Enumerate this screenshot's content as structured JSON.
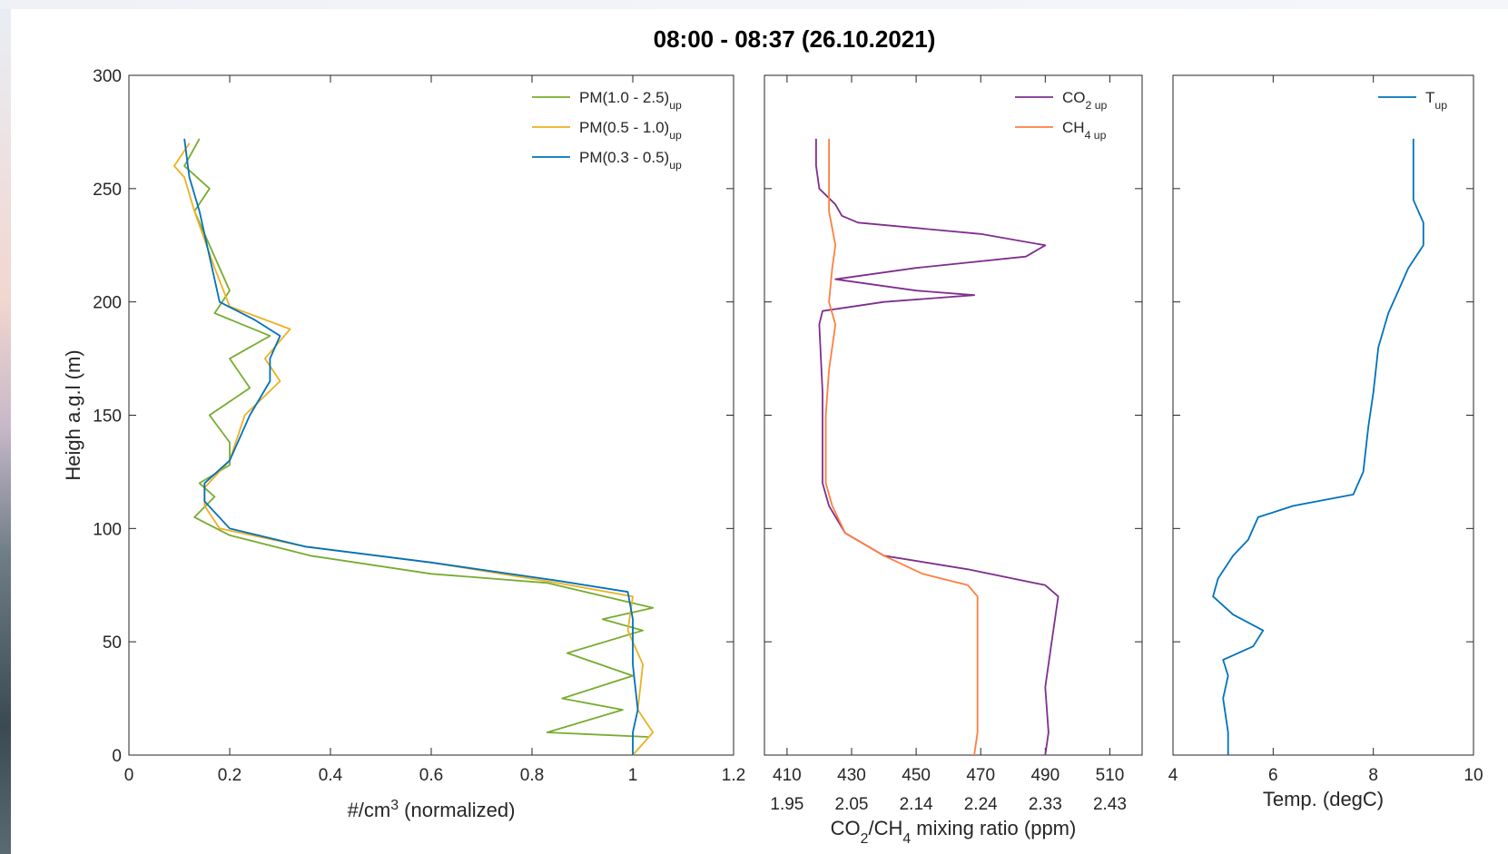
{
  "title": "08:00 - 08:37    (26.10.2021)",
  "colors": {
    "pm_1_2_5": "#77ac30",
    "pm_05_1": "#edb120",
    "pm_03_05": "#0072bd",
    "co2": "#7e2f8e",
    "ch4": "#ff7f3f",
    "temp": "#0072bd"
  },
  "chart_data": [
    {
      "type": "line",
      "ylabel": "Heigh a.g.l (m)",
      "xlabel_main": "#/cm",
      "xlabel_sup": "3",
      "xlabel_tail": " (normalized)",
      "xlim": [
        0,
        1.2
      ],
      "ylim": [
        0,
        300
      ],
      "xticks": [
        "0",
        "0.2",
        "0.4",
        "0.6",
        "0.8",
        "1",
        "1.2"
      ],
      "yticks": [
        "0",
        "50",
        "100",
        "150",
        "200",
        "250",
        "300"
      ],
      "legend_position": "top-right",
      "series": [
        {
          "name": "PM(1.0 - 2.5)",
          "sub": "up",
          "color_key": "pm_1_2_5",
          "points": [
            [
              1.03,
              8
            ],
            [
              0.83,
              10
            ],
            [
              0.98,
              20
            ],
            [
              0.86,
              25
            ],
            [
              1.0,
              35
            ],
            [
              0.87,
              45
            ],
            [
              1.02,
              55
            ],
            [
              0.94,
              60
            ],
            [
              1.04,
              65
            ],
            [
              0.83,
              76
            ],
            [
              0.6,
              80
            ],
            [
              0.36,
              88
            ],
            [
              0.2,
              97
            ],
            [
              0.13,
              105
            ],
            [
              0.17,
              114
            ],
            [
              0.14,
              120
            ],
            [
              0.2,
              128
            ],
            [
              0.2,
              138
            ],
            [
              0.16,
              150
            ],
            [
              0.24,
              162
            ],
            [
              0.2,
              175
            ],
            [
              0.28,
              185
            ],
            [
              0.17,
              195
            ],
            [
              0.2,
              205
            ],
            [
              0.16,
              225
            ],
            [
              0.13,
              240
            ],
            [
              0.16,
              250
            ],
            [
              0.11,
              260
            ],
            [
              0.14,
              272
            ]
          ]
        },
        {
          "name": "PM(0.5 - 1.0)",
          "sub": "up",
          "color_key": "pm_05_1",
          "points": [
            [
              1.0,
              0
            ],
            [
              1.04,
              10
            ],
            [
              1.01,
              20
            ],
            [
              1.02,
              40
            ],
            [
              0.99,
              55
            ],
            [
              1.0,
              70
            ],
            [
              0.85,
              76
            ],
            [
              0.6,
              85
            ],
            [
              0.35,
              92
            ],
            [
              0.18,
              100
            ],
            [
              0.15,
              110
            ],
            [
              0.15,
              118
            ],
            [
              0.2,
              130
            ],
            [
              0.23,
              150
            ],
            [
              0.3,
              165
            ],
            [
              0.27,
              175
            ],
            [
              0.32,
              188
            ],
            [
              0.2,
              198
            ],
            [
              0.17,
              215
            ],
            [
              0.13,
              240
            ],
            [
              0.11,
              255
            ],
            [
              0.09,
              260
            ],
            [
              0.12,
              270
            ]
          ]
        },
        {
          "name": "PM(0.3 - 0.5)",
          "sub": "up",
          "color_key": "pm_03_05",
          "points": [
            [
              1.0,
              0
            ],
            [
              1.0,
              10
            ],
            [
              1.01,
              20
            ],
            [
              1.0,
              40
            ],
            [
              1.0,
              60
            ],
            [
              0.99,
              72
            ],
            [
              0.85,
              77
            ],
            [
              0.6,
              85
            ],
            [
              0.35,
              92
            ],
            [
              0.2,
              100
            ],
            [
              0.15,
              112
            ],
            [
              0.15,
              120
            ],
            [
              0.2,
              130
            ],
            [
              0.24,
              150
            ],
            [
              0.28,
              165
            ],
            [
              0.28,
              175
            ],
            [
              0.3,
              185
            ],
            [
              0.25,
              192
            ],
            [
              0.18,
              200
            ],
            [
              0.16,
              220
            ],
            [
              0.14,
              240
            ],
            [
              0.12,
              255
            ],
            [
              0.11,
              272
            ]
          ]
        }
      ]
    },
    {
      "type": "line",
      "xlabel_parts": [
        "CO",
        "2",
        "/CH",
        "4",
        " mixing ratio (ppm)"
      ],
      "xlim": [
        403,
        520
      ],
      "ylim": [
        0,
        300
      ],
      "xticks_co2": [
        "410",
        "430",
        "450",
        "470",
        "490",
        "510"
      ],
      "xticks_ch4": [
        "1.95",
        "2.05",
        "2.14",
        "2.24",
        "2.33",
        "2.43"
      ],
      "legend_position": "top-right",
      "series": [
        {
          "name": "CO",
          "sub": "2 up",
          "color_key": "co2",
          "points": [
            [
              490,
              0
            ],
            [
              491,
              10
            ],
            [
              490,
              30
            ],
            [
              492,
              50
            ],
            [
              493,
              60
            ],
            [
              494,
              70
            ],
            [
              490,
              75
            ],
            [
              466,
              82
            ],
            [
              440,
              88
            ],
            [
              428,
              98
            ],
            [
              423,
              110
            ],
            [
              421,
              120
            ],
            [
              421,
              160
            ],
            [
              420,
              190
            ],
            [
              421,
              196
            ],
            [
              440,
              200
            ],
            [
              468,
              203
            ],
            [
              450,
              205
            ],
            [
              425,
              210
            ],
            [
              450,
              215
            ],
            [
              484,
              220
            ],
            [
              490,
              225
            ],
            [
              470,
              230
            ],
            [
              432,
              235
            ],
            [
              427,
              238
            ],
            [
              425,
              243
            ],
            [
              420,
              250
            ],
            [
              419,
              260
            ],
            [
              419,
              272
            ]
          ]
        },
        {
          "name": "CH",
          "sub": "4 up",
          "color_key": "ch4",
          "points": [
            [
              468,
              0
            ],
            [
              469,
              10
            ],
            [
              469,
              40
            ],
            [
              469,
              60
            ],
            [
              469,
              70
            ],
            [
              466,
              75
            ],
            [
              452,
              80
            ],
            [
              440,
              88
            ],
            [
              428,
              98
            ],
            [
              424,
              110
            ],
            [
              422,
              120
            ],
            [
              422,
              150
            ],
            [
              423,
              170
            ],
            [
              425,
              190
            ],
            [
              423,
              200
            ],
            [
              424,
              215
            ],
            [
              425,
              225
            ],
            [
              423,
              240
            ],
            [
              423,
              255
            ],
            [
              423,
              272
            ]
          ]
        }
      ]
    },
    {
      "type": "line",
      "xlabel": "Temp. (degC)",
      "xlim": [
        4,
        10
      ],
      "ylim": [
        0,
        300
      ],
      "xticks": [
        "4",
        "6",
        "8",
        "10"
      ],
      "legend_position": "top-right",
      "series": [
        {
          "name": "T",
          "sub": "up",
          "color_key": "temp",
          "points": [
            [
              5.1,
              0
            ],
            [
              5.1,
              10
            ],
            [
              5.0,
              25
            ],
            [
              5.1,
              35
            ],
            [
              5.0,
              42
            ],
            [
              5.6,
              48
            ],
            [
              5.8,
              55
            ],
            [
              5.2,
              62
            ],
            [
              4.8,
              70
            ],
            [
              4.9,
              78
            ],
            [
              5.2,
              88
            ],
            [
              5.5,
              95
            ],
            [
              5.7,
              105
            ],
            [
              6.4,
              110
            ],
            [
              7.6,
              115
            ],
            [
              7.8,
              125
            ],
            [
              7.9,
              145
            ],
            [
              8.0,
              160
            ],
            [
              8.1,
              180
            ],
            [
              8.3,
              195
            ],
            [
              8.5,
              205
            ],
            [
              8.7,
              215
            ],
            [
              9.0,
              225
            ],
            [
              9.0,
              235
            ],
            [
              8.8,
              245
            ],
            [
              8.8,
              255
            ],
            [
              8.8,
              262
            ],
            [
              8.8,
              272
            ]
          ]
        }
      ]
    }
  ]
}
